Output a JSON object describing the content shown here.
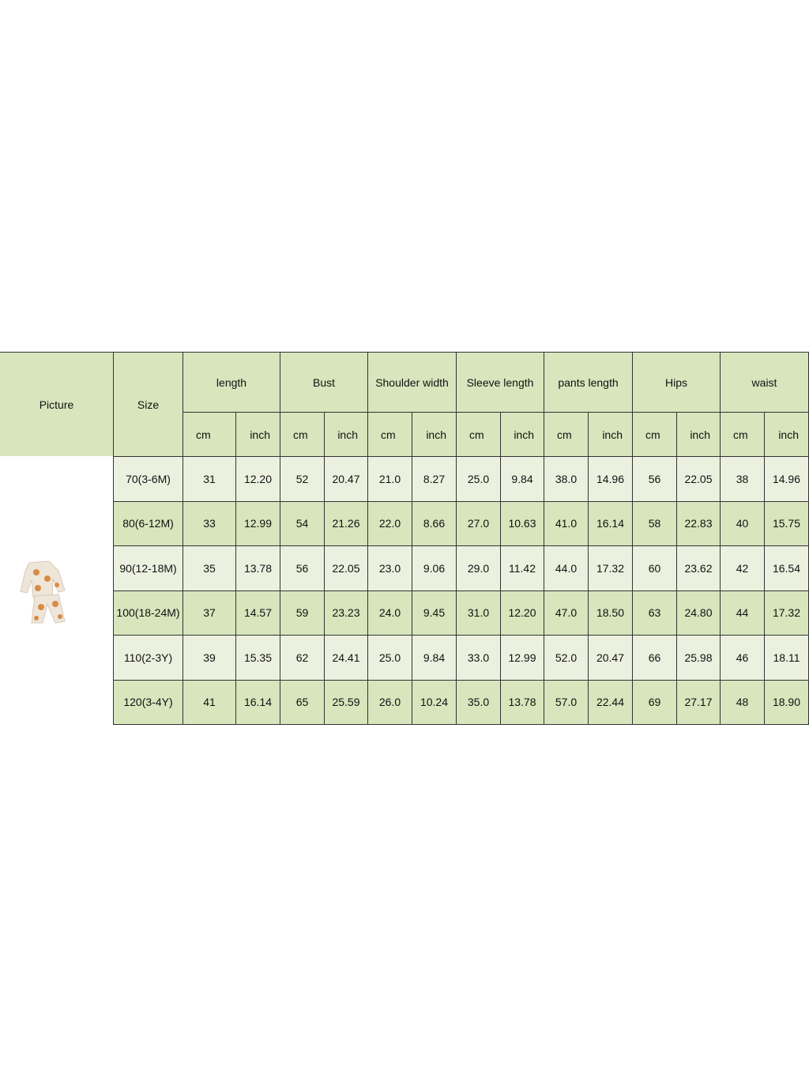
{
  "table": {
    "header": {
      "picture": "Picture",
      "size": "Size",
      "groups": [
        {
          "name": "length",
          "units": [
            "cm",
            "inch"
          ]
        },
        {
          "name": "Bust",
          "units": [
            "cm",
            "inch"
          ]
        },
        {
          "name": "Shoulder width",
          "units": [
            "cm",
            "inch"
          ]
        },
        {
          "name": "Sleeve length",
          "units": [
            "cm",
            "inch"
          ]
        },
        {
          "name": "pants length",
          "units": [
            "cm",
            "inch"
          ]
        },
        {
          "name": "Hips",
          "units": [
            "cm",
            "inch"
          ]
        },
        {
          "name": "waist",
          "units": [
            "cm",
            "inch"
          ]
        }
      ]
    },
    "rows": [
      {
        "size": "70(3-6M)",
        "values": [
          "31",
          "12.20",
          "52",
          "20.47",
          "21.0",
          "8.27",
          "25.0",
          "9.84",
          "38.0",
          "14.96",
          "56",
          "22.05",
          "38",
          "14.96"
        ]
      },
      {
        "size": "80(6-12M)",
        "values": [
          "33",
          "12.99",
          "54",
          "21.26",
          "22.0",
          "8.66",
          "27.0",
          "10.63",
          "41.0",
          "16.14",
          "58",
          "22.83",
          "40",
          "15.75"
        ]
      },
      {
        "size": "90(12-18M)",
        "values": [
          "35",
          "13.78",
          "56",
          "22.05",
          "23.0",
          "9.06",
          "29.0",
          "11.42",
          "44.0",
          "17.32",
          "60",
          "23.62",
          "42",
          "16.54"
        ]
      },
      {
        "size": "100(18-24M)",
        "values": [
          "37",
          "14.57",
          "59",
          "23.23",
          "24.0",
          "9.45",
          "31.0",
          "12.20",
          "47.0",
          "18.50",
          "63",
          "24.80",
          "44",
          "17.32"
        ]
      },
      {
        "size": "110(2-3Y)",
        "values": [
          "39",
          "15.35",
          "62",
          "24.41",
          "25.0",
          "9.84",
          "33.0",
          "12.99",
          "52.0",
          "20.47",
          "66",
          "25.98",
          "46",
          "18.11"
        ]
      },
      {
        "size": "120(3-4Y)",
        "values": [
          "41",
          "16.14",
          "65",
          "25.59",
          "26.0",
          "10.24",
          "35.0",
          "13.78",
          "57.0",
          "22.44",
          "69",
          "27.17",
          "48",
          "18.90"
        ]
      }
    ]
  }
}
